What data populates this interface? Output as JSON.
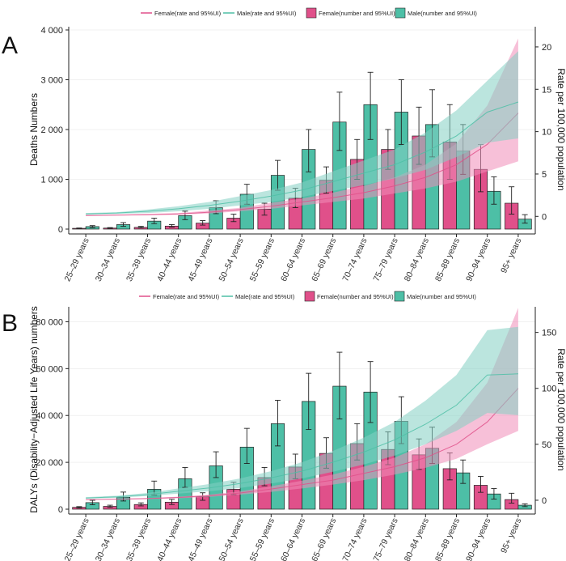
{
  "colors": {
    "female": "#e0508a",
    "male": "#4dbfa6",
    "female_band": "#f08cb8",
    "male_band": "#83d0c2",
    "axis": "#222222"
  },
  "chart_data": [
    {
      "panel_label": "A",
      "type": "bar",
      "title": "",
      "ylabel": "Deaths Numbers",
      "y2label": "Rate per 100,000 population",
      "ylim": [
        0,
        4000
      ],
      "yticks": [
        0,
        1000,
        2000,
        3000,
        4000
      ],
      "yticklabels": [
        "0",
        "1 000",
        "2 000",
        "3 000",
        "4 000"
      ],
      "y2lim": [
        -1.5,
        22
      ],
      "y2ticks": [
        0,
        5,
        10,
        15,
        20
      ],
      "y2ticklabels": [
        "0",
        "5",
        "10",
        "15",
        "20"
      ],
      "legend": [
        "Female(rate and 95%UI)",
        "Male(rate and 95%UI)",
        "Female(number and 95%UI)",
        "Male(number and 95%UI)"
      ],
      "categories": [
        "25–29 years",
        "30–34 years",
        "35–39 years",
        "40–44 years",
        "45–49 years",
        "50–54 years",
        "55–59 years",
        "60–64 years",
        "65–69 years",
        "70–74 years",
        "75–79 years",
        "80–84 years",
        "85–89 years",
        "90–94 years",
        "95+ years"
      ],
      "series": [
        {
          "name": "Female(number and 95%UI)",
          "kind": "bar",
          "values": [
            15,
            20,
            35,
            60,
            120,
            220,
            400,
            620,
            980,
            1400,
            1600,
            1870,
            1750,
            1200,
            520
          ],
          "lower": [
            10,
            15,
            25,
            40,
            80,
            150,
            280,
            430,
            720,
            1000,
            1200,
            1300,
            1000,
            750,
            300
          ],
          "upper": [
            22,
            30,
            55,
            90,
            170,
            300,
            520,
            820,
            1250,
            1800,
            2000,
            2450,
            2500,
            1700,
            850
          ]
        },
        {
          "name": "Male(number and 95%UI)",
          "kind": "bar",
          "values": [
            50,
            90,
            160,
            270,
            430,
            700,
            1080,
            1600,
            2150,
            2500,
            2350,
            2100,
            1570,
            760,
            200
          ],
          "lower": [
            30,
            55,
            110,
            190,
            310,
            500,
            780,
            1150,
            1580,
            1800,
            1700,
            1450,
            1100,
            500,
            120
          ],
          "upper": [
            70,
            130,
            220,
            360,
            570,
            900,
            1380,
            2000,
            2750,
            3150,
            3000,
            2800,
            2100,
            1050,
            290
          ]
        },
        {
          "name": "Female(rate and 95%UI)",
          "kind": "line",
          "values": [
            0.1,
            0.15,
            0.2,
            0.3,
            0.5,
            0.8,
            1.2,
            1.7,
            2.2,
            2.8,
            3.6,
            4.6,
            6.1,
            8.5,
            12.2
          ],
          "lower": [
            0.05,
            0.1,
            0.15,
            0.2,
            0.35,
            0.6,
            0.9,
            1.3,
            1.7,
            2.1,
            2.7,
            3.3,
            4.1,
            5.3,
            6.5
          ],
          "upper": [
            0.15,
            0.2,
            0.3,
            0.4,
            0.7,
            1.0,
            1.6,
            2.1,
            2.8,
            3.6,
            4.6,
            6.1,
            8.6,
            13.1,
            21.0
          ]
        },
        {
          "name": "Male(rate and 95%UI)",
          "kind": "line",
          "values": [
            0.3,
            0.4,
            0.6,
            0.9,
            1.3,
            1.8,
            2.4,
            3.1,
            4.1,
            5.1,
            6.1,
            7.6,
            9.5,
            12.3,
            13.5
          ],
          "lower": [
            0.2,
            0.3,
            0.4,
            0.6,
            0.9,
            1.3,
            1.7,
            2.3,
            3.0,
            3.7,
            4.5,
            5.5,
            7.0,
            8.7,
            9.2
          ],
          "upper": [
            0.4,
            0.5,
            0.8,
            1.2,
            1.7,
            2.4,
            3.1,
            4.0,
            5.3,
            6.6,
            7.9,
            9.9,
            12.5,
            16.0,
            19.5
          ]
        }
      ]
    },
    {
      "panel_label": "B",
      "type": "bar",
      "title": "",
      "ylabel": "DALYs (Disability−Adjusted Life Years) numbers",
      "y2label": "Rate per 100,000 population",
      "ylim": [
        0,
        85000
      ],
      "yticks": [
        0,
        20000,
        40000,
        60000,
        80000
      ],
      "yticklabels": [
        "0",
        "20 000",
        "40 000",
        "60 000",
        "80 000"
      ],
      "y2lim": [
        -8,
        170
      ],
      "y2ticks": [
        0,
        50,
        100,
        150
      ],
      "y2ticklabels": [
        "0",
        "50",
        "100",
        "150"
      ],
      "legend": [
        "Female(rate and 95%UI)",
        "Male(rate and 95%UI)",
        "Female(number and 95%UI)",
        "Male(number and 95%UI)"
      ],
      "categories": [
        "25–29 years",
        "30–34 years",
        "35–39 years",
        "40–44 years",
        "45–49 years",
        "50–54 years",
        "55–59 years",
        "60–64 years",
        "65–69 years",
        "70–74 years",
        "75–79 years",
        "80–84 years",
        "85–89 years",
        "90–94 years",
        "95+ years"
      ],
      "series": [
        {
          "name": "Female(number and 95%UI)",
          "kind": "bar",
          "values": [
            800,
            1200,
            2000,
            3000,
            5300,
            8500,
            13500,
            18000,
            23800,
            28000,
            25500,
            23200,
            17300,
            10200,
            4100
          ],
          "lower": [
            500,
            800,
            1400,
            2000,
            3800,
            6200,
            10000,
            13000,
            17500,
            21000,
            19000,
            17000,
            12500,
            7200,
            2600
          ],
          "upper": [
            1100,
            1700,
            2700,
            4200,
            7000,
            11500,
            17800,
            23500,
            30500,
            36500,
            33000,
            30000,
            24000,
            14000,
            6800
          ]
        },
        {
          "name": "Male(number and 95%UI)",
          "kind": "bar",
          "values": [
            2800,
            5100,
            8500,
            13000,
            18500,
            26500,
            36500,
            46000,
            52500,
            50000,
            37500,
            26000,
            15500,
            6500,
            1700
          ],
          "lower": [
            1900,
            3500,
            6000,
            9300,
            13500,
            19500,
            27000,
            34000,
            38500,
            37000,
            28000,
            19500,
            11000,
            4300,
            1100
          ],
          "upper": [
            3800,
            7300,
            12000,
            17800,
            24500,
            34500,
            46500,
            58000,
            67000,
            63000,
            48000,
            35000,
            21000,
            8800,
            2300
          ]
        },
        {
          "name": "Female(rate and 95%UI)",
          "kind": "line",
          "values": [
            0.5,
            1,
            1.5,
            2.5,
            4,
            6.5,
            10,
            14,
            18,
            24,
            30,
            38,
            50,
            70,
            100
          ],
          "lower": [
            0.3,
            0.7,
            1,
            1.8,
            3,
            5,
            7.5,
            10.5,
            14,
            18,
            23,
            29,
            37,
            50,
            62
          ],
          "upper": [
            0.7,
            1.3,
            2,
            3.2,
            5,
            8,
            12.5,
            17.5,
            23,
            30,
            38,
            50,
            70,
            105,
            172
          ]
        },
        {
          "name": "Male(rate and 95%UI)",
          "kind": "line",
          "values": [
            2,
            3,
            5,
            8,
            11,
            15,
            20,
            26,
            34,
            43,
            54,
            68,
            85,
            112,
            113
          ],
          "lower": [
            1.4,
            2.2,
            3.7,
            6,
            8,
            11,
            15,
            19.5,
            25.5,
            32,
            40,
            50,
            62,
            78,
            76
          ],
          "upper": [
            2.8,
            4,
            6.5,
            10.5,
            14.5,
            19.5,
            26,
            34,
            44,
            56,
            70,
            89,
            112,
            152,
            155
          ]
        }
      ]
    }
  ]
}
